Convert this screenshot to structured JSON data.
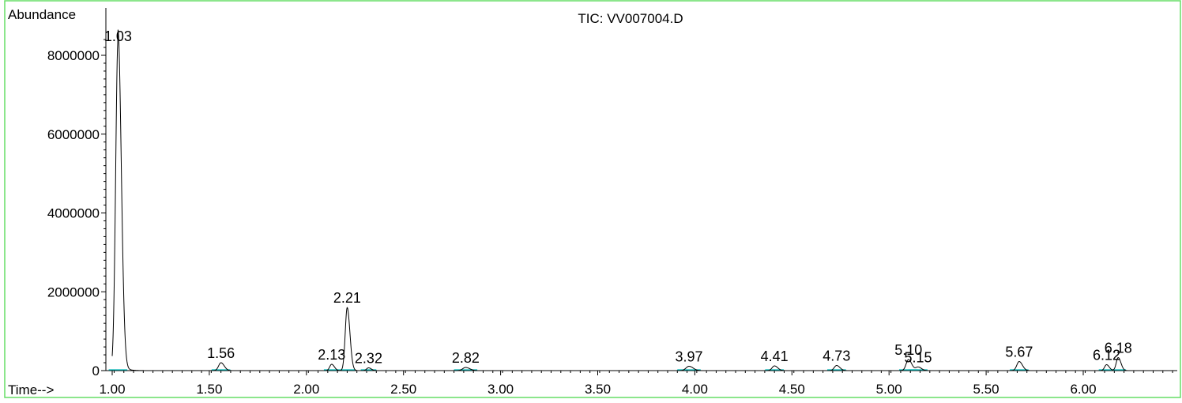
{
  "chart_data": {
    "type": "line",
    "title": "TIC: VV007004.D",
    "ylabel": "Abundance",
    "xlabel": "Time-->",
    "xlim": [
      0.96,
      6.5
    ],
    "ylim": [
      0,
      8800000
    ],
    "x_ticks": [
      "1.00",
      "1.50",
      "2.00",
      "2.50",
      "3.00",
      "3.50",
      "4.00",
      "4.50",
      "5.00",
      "5.50",
      "6.00"
    ],
    "x_tick_values": [
      1.0,
      1.5,
      2.0,
      2.5,
      3.0,
      3.5,
      4.0,
      4.5,
      5.0,
      5.5,
      6.0
    ],
    "y_ticks": [
      "0",
      "2000000",
      "4000000",
      "6000000",
      "8000000"
    ],
    "y_tick_values": [
      0,
      2000000,
      4000000,
      6000000,
      8000000
    ],
    "grid": false,
    "colors": {
      "frame": "#66dd66",
      "trace": "#000000",
      "baseline": "#00bbbb"
    },
    "peaks": [
      {
        "label": "1.03",
        "x": 1.03,
        "height": 8400000,
        "width": 0.012
      },
      {
        "label": "1.56",
        "x": 1.56,
        "height": 200000,
        "width": 0.012
      },
      {
        "label": "2.13",
        "x": 2.13,
        "height": 160000,
        "width": 0.01
      },
      {
        "label": "2.21",
        "x": 2.21,
        "height": 1600000,
        "width": 0.01
      },
      {
        "label": "2.32",
        "x": 2.32,
        "height": 70000,
        "width": 0.01
      },
      {
        "label": "2.82",
        "x": 2.82,
        "height": 80000,
        "width": 0.015
      },
      {
        "label": "3.97",
        "x": 3.97,
        "height": 110000,
        "width": 0.015
      },
      {
        "label": "4.41",
        "x": 4.41,
        "height": 120000,
        "width": 0.012
      },
      {
        "label": "4.73",
        "x": 4.73,
        "height": 130000,
        "width": 0.012
      },
      {
        "label": "5.10",
        "x": 5.1,
        "height": 280000,
        "width": 0.012
      },
      {
        "label": "5.15",
        "x": 5.15,
        "height": 90000,
        "width": 0.012
      },
      {
        "label": "5.67",
        "x": 5.67,
        "height": 230000,
        "width": 0.012
      },
      {
        "label": "6.12",
        "x": 6.12,
        "height": 150000,
        "width": 0.01
      },
      {
        "label": "6.18",
        "x": 6.18,
        "height": 330000,
        "width": 0.01
      }
    ]
  }
}
